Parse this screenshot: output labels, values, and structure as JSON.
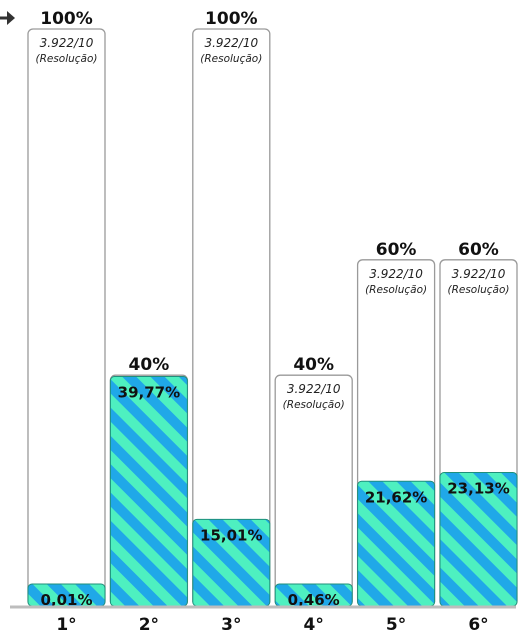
{
  "chart_data": {
    "type": "bar",
    "categories": [
      "1°",
      "2°",
      "3°",
      "4°",
      "5°",
      "6°"
    ],
    "series": [
      {
        "values": [
          0.01,
          39.77,
          15.01,
          0.46,
          21.62,
          23.13
        ],
        "labels": [
          "0,01%",
          "39,77%",
          "15,01%",
          "0,46%",
          "21,62%",
          "23,13%"
        ]
      }
    ],
    "limits": {
      "values": [
        100,
        40,
        100,
        40,
        60,
        60
      ],
      "labels": [
        "100%",
        "40%",
        "100%",
        "40%",
        "60%",
        "60%"
      ]
    },
    "limit_notes": [
      {
        "line1": "3.922/10",
        "line2": "(Resolução)"
      },
      null,
      {
        "line1": "3.922/10",
        "line2": "(Resolução)"
      },
      {
        "line1": "3.922/10",
        "line2": "(Resolução)"
      },
      {
        "line1": "3.922/10",
        "line2": "(Resolução)"
      },
      {
        "line1": "3.922/10",
        "line2": "(Resolução)"
      }
    ],
    "ylim": [
      0,
      100
    ],
    "grid": false,
    "colors": {
      "fill_a": "#4ef0c0",
      "fill_b": "#20a8e8",
      "bar_stroke": "#1f8f7a",
      "frame_stroke": "#9a9a9a",
      "baseline": "#bdbdbd",
      "arrow": "#333333",
      "text": "#111111"
    }
  }
}
